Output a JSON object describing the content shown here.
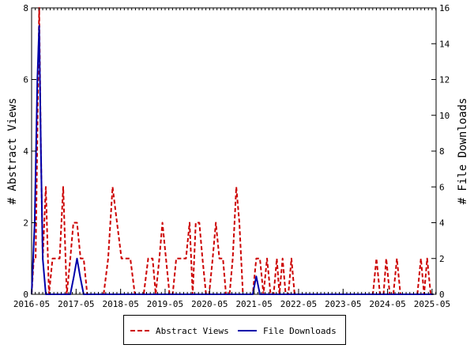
{
  "chart_data": {
    "type": "line",
    "title": "",
    "ylabel_left": "# Abstract Views",
    "ylabel_right": "# File Downloads",
    "ylim_left": [
      0,
      8
    ],
    "ylim_right": [
      0,
      16
    ],
    "yticks_left": [
      "0",
      "2",
      "4",
      "6",
      "8"
    ],
    "yticks_right": [
      "0",
      "2",
      "4",
      "6",
      "8",
      "10",
      "12",
      "14",
      "16"
    ],
    "xlim": [
      2016.33,
      2025.42
    ],
    "xticks": [
      {
        "label": "2016-05",
        "x": 2016.33
      },
      {
        "label": "2017-05",
        "x": 2017.33
      },
      {
        "label": "2018-05",
        "x": 2018.33
      },
      {
        "label": "2019-05",
        "x": 2019.33
      },
      {
        "label": "2020-05",
        "x": 2020.33
      },
      {
        "label": "2021-05",
        "x": 2021.33
      },
      {
        "label": "2022-05",
        "x": 2022.33
      },
      {
        "label": "2023-05",
        "x": 2023.33
      },
      {
        "label": "2024-05",
        "x": 2024.33
      },
      {
        "label": "2025-05",
        "x": 2025.33
      }
    ],
    "grid": false,
    "legend_position": "bottom",
    "series": [
      {
        "name": "Abstract Views",
        "axis": "left",
        "color": "#cc0000",
        "style": "dashed",
        "points": [
          [
            2016.33,
            0
          ],
          [
            2016.38,
            1
          ],
          [
            2016.42,
            1
          ],
          [
            2016.5,
            8
          ],
          [
            2016.54,
            4
          ],
          [
            2016.58,
            1
          ],
          [
            2016.65,
            3
          ],
          [
            2016.72,
            0
          ],
          [
            2016.8,
            1
          ],
          [
            2016.88,
            1
          ],
          [
            2016.96,
            1
          ],
          [
            2017.04,
            3
          ],
          [
            2017.12,
            0
          ],
          [
            2017.2,
            1
          ],
          [
            2017.27,
            2
          ],
          [
            2017.35,
            2
          ],
          [
            2017.43,
            1
          ],
          [
            2017.5,
            1
          ],
          [
            2017.58,
            0
          ],
          [
            2017.65,
            0
          ],
          [
            2017.75,
            0
          ],
          [
            2017.85,
            0
          ],
          [
            2017.95,
            0
          ],
          [
            2018.05,
            1
          ],
          [
            2018.15,
            3
          ],
          [
            2018.25,
            2
          ],
          [
            2018.35,
            1
          ],
          [
            2018.45,
            1
          ],
          [
            2018.55,
            1
          ],
          [
            2018.65,
            0
          ],
          [
            2018.75,
            0
          ],
          [
            2018.85,
            0
          ],
          [
            2018.95,
            1
          ],
          [
            2019.05,
            1
          ],
          [
            2019.12,
            0
          ],
          [
            2019.2,
            1
          ],
          [
            2019.27,
            2
          ],
          [
            2019.35,
            1
          ],
          [
            2019.43,
            0
          ],
          [
            2019.5,
            0
          ],
          [
            2019.58,
            1
          ],
          [
            2019.65,
            1
          ],
          [
            2019.73,
            1
          ],
          [
            2019.8,
            1
          ],
          [
            2019.88,
            2
          ],
          [
            2019.95,
            0
          ],
          [
            2020.02,
            2
          ],
          [
            2020.1,
            2
          ],
          [
            2020.17,
            1
          ],
          [
            2020.25,
            0
          ],
          [
            2020.32,
            0
          ],
          [
            2020.4,
            1
          ],
          [
            2020.47,
            2
          ],
          [
            2020.55,
            1
          ],
          [
            2020.63,
            1
          ],
          [
            2020.7,
            0
          ],
          [
            2020.78,
            0
          ],
          [
            2020.85,
            1
          ],
          [
            2020.93,
            3
          ],
          [
            2021.0,
            2
          ],
          [
            2021.08,
            0
          ],
          [
            2021.15,
            0
          ],
          [
            2021.22,
            0
          ],
          [
            2021.3,
            0
          ],
          [
            2021.38,
            1
          ],
          [
            2021.46,
            1
          ],
          [
            2021.54,
            0
          ],
          [
            2021.62,
            1
          ],
          [
            2021.7,
            0
          ],
          [
            2021.77,
            0
          ],
          [
            2021.84,
            1
          ],
          [
            2021.9,
            0
          ],
          [
            2021.97,
            1
          ],
          [
            2022.04,
            0
          ],
          [
            2022.1,
            0
          ],
          [
            2022.17,
            1
          ],
          [
            2022.24,
            0
          ],
          [
            2022.31,
            0
          ],
          [
            2022.8,
            0
          ],
          [
            2023.3,
            0
          ],
          [
            2023.8,
            0
          ],
          [
            2024.0,
            0
          ],
          [
            2024.08,
            1
          ],
          [
            2024.16,
            0
          ],
          [
            2024.24,
            0
          ],
          [
            2024.3,
            1
          ],
          [
            2024.38,
            0
          ],
          [
            2024.46,
            0
          ],
          [
            2024.54,
            1
          ],
          [
            2024.62,
            0
          ],
          [
            2024.7,
            0
          ],
          [
            2024.8,
            0
          ],
          [
            2024.9,
            0
          ],
          [
            2025.0,
            0
          ],
          [
            2025.08,
            1
          ],
          [
            2025.15,
            0
          ],
          [
            2025.22,
            1
          ],
          [
            2025.3,
            0
          ],
          [
            2025.36,
            0
          ]
        ]
      },
      {
        "name": "File Downloads",
        "axis": "right",
        "color": "#0000aa",
        "style": "solid",
        "points": [
          [
            2016.33,
            0
          ],
          [
            2016.4,
            4
          ],
          [
            2016.46,
            12
          ],
          [
            2016.5,
            15
          ],
          [
            2016.54,
            8
          ],
          [
            2016.58,
            2
          ],
          [
            2016.65,
            0
          ],
          [
            2016.8,
            0
          ],
          [
            2017.0,
            0
          ],
          [
            2017.2,
            0
          ],
          [
            2017.28,
            1
          ],
          [
            2017.35,
            2
          ],
          [
            2017.42,
            1
          ],
          [
            2017.5,
            0
          ],
          [
            2017.8,
            0
          ],
          [
            2018.5,
            0
          ],
          [
            2019.5,
            0
          ],
          [
            2020.5,
            0
          ],
          [
            2021.0,
            0
          ],
          [
            2021.3,
            0
          ],
          [
            2021.38,
            1
          ],
          [
            2021.46,
            0
          ],
          [
            2021.8,
            0
          ],
          [
            2022.8,
            0
          ],
          [
            2023.8,
            0
          ],
          [
            2024.8,
            0
          ],
          [
            2025.36,
            0
          ]
        ]
      }
    ]
  }
}
